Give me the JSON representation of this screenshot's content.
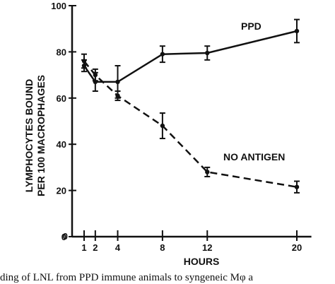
{
  "chart_data": {
    "type": "line",
    "xlabel": "HOURS",
    "ylabel_line1": "LYMPHOCYTES BOUND",
    "ylabel_line2": "PER 100 MACROPHAGES",
    "xlim": [
      0,
      21
    ],
    "ylim": [
      0,
      100
    ],
    "x_ticks": [
      1,
      2,
      4,
      8,
      12,
      20
    ],
    "y_ticks": [
      0,
      20,
      40,
      60,
      80,
      100
    ],
    "grid": false,
    "series": [
      {
        "name": "PPD",
        "style": "solid",
        "x": [
          1,
          2,
          4,
          8,
          12,
          20
        ],
        "y": [
          74,
          67,
          67,
          79,
          79.5,
          89
        ],
        "err": [
          2.5,
          4,
          7,
          3.5,
          3,
          5
        ]
      },
      {
        "name": "NO ANTIGEN",
        "style": "dashed",
        "x": [
          1,
          2,
          4,
          8,
          12,
          20
        ],
        "y": [
          76,
          70,
          61,
          48,
          28,
          21.5
        ],
        "err": [
          3,
          2.5,
          2,
          5.5,
          2,
          2.5
        ]
      }
    ],
    "caption": "ding of LNL from PPD immune animals to syngeneic Mφ a"
  }
}
